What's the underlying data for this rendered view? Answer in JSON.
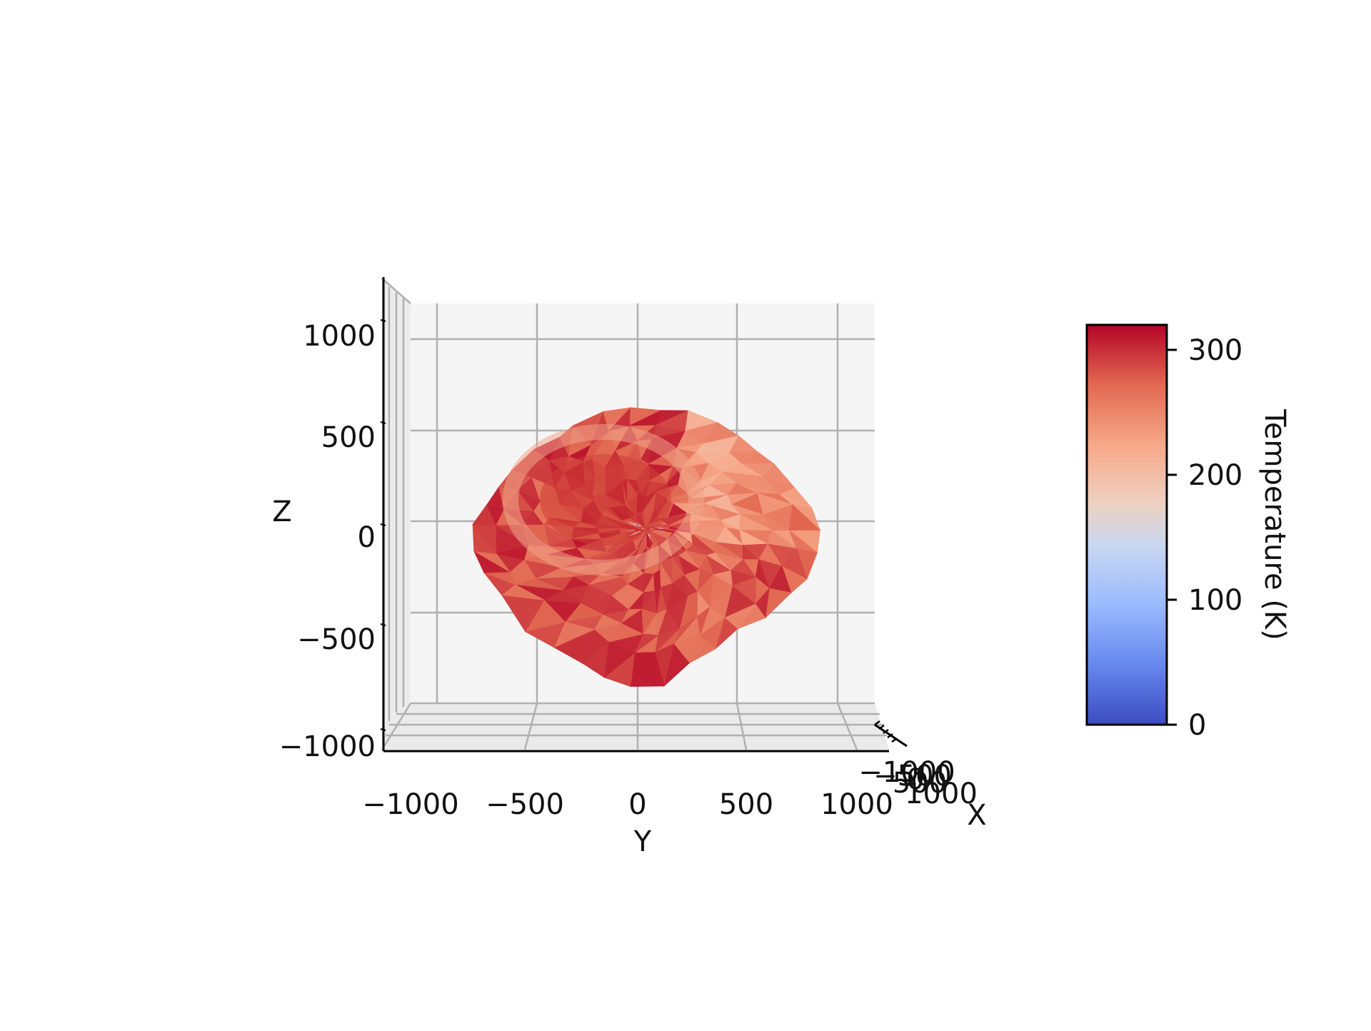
{
  "chart_data": {
    "type": "surface",
    "title": "",
    "axes": {
      "x": {
        "label": "X",
        "ticks": [
          "−1000",
          "−500",
          "0",
          "500",
          "1000"
        ],
        "lim": [
          -1200,
          1200
        ]
      },
      "y": {
        "label": "Y",
        "ticks": [
          "−1000",
          "−500",
          "0",
          "500",
          "1000"
        ],
        "lim": [
          -1200,
          1200
        ]
      },
      "z": {
        "label": "Z",
        "ticks": [
          "−1000",
          "−500",
          "0",
          "500",
          "1000"
        ],
        "lim": [
          -1200,
          1200
        ]
      }
    },
    "grid": true,
    "colormap": "coolwarm",
    "colorbar": {
      "label": "Temperature (K)",
      "ticks": [
        "0",
        "100",
        "200",
        "300"
      ],
      "tick_values": [
        0,
        100,
        200,
        300
      ],
      "range": [
        0,
        320
      ]
    },
    "temperature_range_on_surface": [
      180,
      320
    ]
  }
}
